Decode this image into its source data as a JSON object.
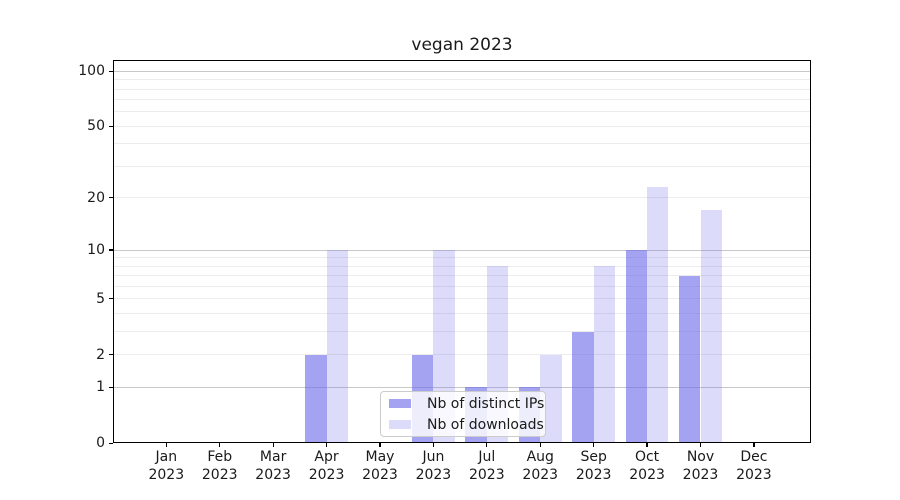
{
  "title": "vegan 2023",
  "legend": {
    "items": [
      {
        "label": "Nb of distinct IPs",
        "color": "rgba(107,107,233,0.62)"
      },
      {
        "label": "Nb of downloads",
        "color": "rgba(107,107,233,0.24)"
      }
    ],
    "position": "lower center"
  },
  "chart_data": {
    "type": "bar",
    "title": "vegan 2023",
    "categories": [
      "Jan 2023",
      "Feb 2023",
      "Mar 2023",
      "Apr 2023",
      "May 2023",
      "Jun 2023",
      "Jul 2023",
      "Aug 2023",
      "Sep 2023",
      "Oct 2023",
      "Nov 2023",
      "Dec 2023"
    ],
    "series": [
      {
        "name": "Nb of distinct IPs",
        "color": "rgba(107,107,233,0.62)",
        "values": [
          0,
          0,
          0,
          2,
          0,
          2,
          1,
          1,
          3,
          10,
          7,
          0
        ]
      },
      {
        "name": "Nb of downloads",
        "color": "rgba(107,107,233,0.24)",
        "values": [
          0,
          0,
          0,
          10,
          0,
          10,
          8,
          2,
          8,
          23,
          17,
          0
        ]
      }
    ],
    "xlabel": "",
    "ylabel": "",
    "y_scale": "log1p",
    "ylim": [
      0,
      115
    ],
    "y_ticks": [
      0,
      1,
      2,
      5,
      10,
      20,
      50,
      100
    ],
    "y_major_gridlines": [
      1,
      10,
      100
    ],
    "y_minor_gridlines": [
      2,
      3,
      4,
      5,
      6,
      7,
      8,
      9,
      20,
      30,
      40,
      50,
      60,
      70,
      80,
      90
    ],
    "grid": true,
    "legend_position": "lower center"
  }
}
